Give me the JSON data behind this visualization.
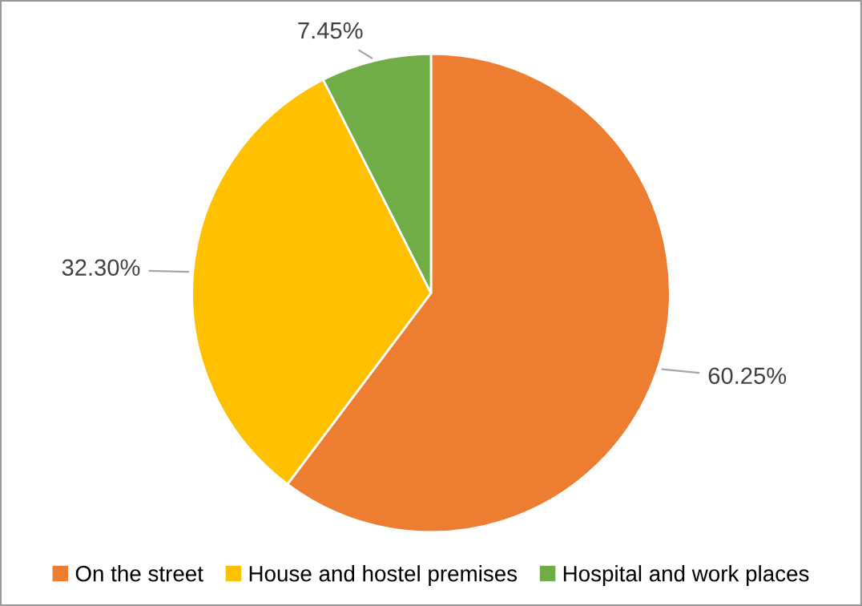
{
  "chart_data": {
    "type": "pie",
    "categories": [
      "On the street",
      "House and hostel premises",
      "Hospital and work places"
    ],
    "values": [
      60.25,
      32.3,
      7.45
    ],
    "colors": [
      "#ed7d31",
      "#ffc000",
      "#70ad47"
    ],
    "value_labels": [
      "60.25%",
      "32.30%",
      "7.45%"
    ],
    "legend": "bottom"
  }
}
